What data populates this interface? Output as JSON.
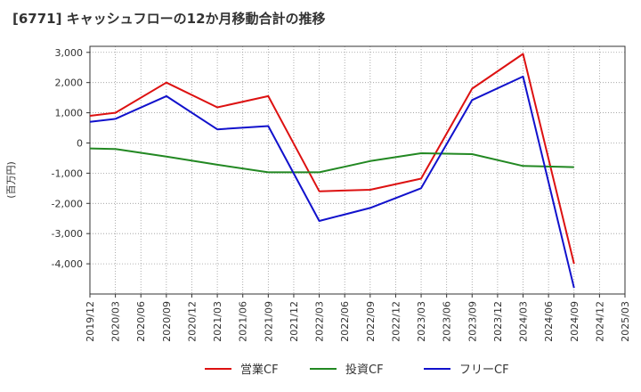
{
  "chart_data": {
    "type": "line",
    "title": "[6771]  キャッシュフローの12か月移動合計の推移",
    "ylabel": "(百万円)",
    "xlabel": "",
    "ylim": [
      -5000,
      3200
    ],
    "yticks": [
      3000,
      2000,
      1000,
      0,
      -1000,
      -2000,
      -3000,
      -4000
    ],
    "ytick_labels": [
      "3,000",
      "2,000",
      "1,000",
      "0",
      "-1,000",
      "-2,000",
      "-3,000",
      "-4,000"
    ],
    "categories": [
      "2019/12",
      "2020/03",
      "2020/06",
      "2020/09",
      "2020/12",
      "2021/03",
      "2021/06",
      "2021/09",
      "2021/12",
      "2022/03",
      "2022/06",
      "2022/09",
      "2022/12",
      "2023/03",
      "2023/06",
      "2023/09",
      "2023/12",
      "2024/03",
      "2024/06",
      "2024/09",
      "2024/12",
      "2025/03"
    ],
    "grid": true,
    "legend_position": "bottom",
    "series": [
      {
        "name": "営業CF",
        "color": "#dd1111",
        "values": [
          900,
          1000,
          null,
          2000,
          null,
          1180,
          null,
          1550,
          null,
          -1600,
          null,
          -1550,
          null,
          -1180,
          null,
          1800,
          null,
          2950,
          null,
          -4000,
          null,
          null
        ]
      },
      {
        "name": "投資CF",
        "color": "#228822",
        "values": [
          -180,
          -200,
          null,
          -450,
          null,
          -720,
          null,
          -970,
          null,
          -970,
          null,
          -600,
          null,
          -340,
          null,
          -370,
          null,
          -760,
          null,
          -800,
          null,
          null
        ]
      },
      {
        "name": "フリーCF",
        "color": "#1111cc",
        "values": [
          700,
          800,
          null,
          1550,
          null,
          450,
          null,
          560,
          null,
          -2580,
          null,
          -2150,
          null,
          -1500,
          null,
          1420,
          null,
          2200,
          null,
          -4800,
          null,
          null
        ]
      }
    ]
  }
}
